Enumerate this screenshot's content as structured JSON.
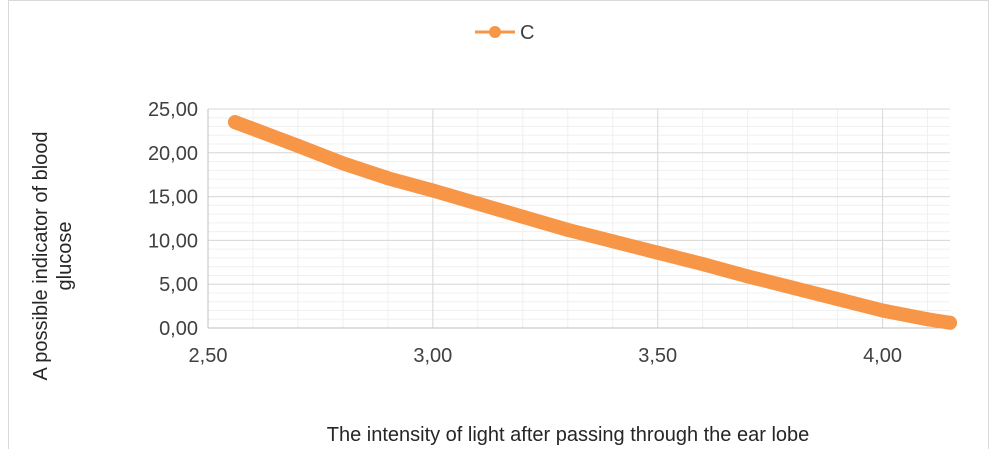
{
  "chart_data": {
    "type": "scatter",
    "title": "",
    "xlabel": "The intensity of light after passing through the ear lobe",
    "ylabel_lines": [
      "A possible indicator of blood",
      "glucose"
    ],
    "xlim": [
      2.5,
      4.15
    ],
    "ylim": [
      0,
      25
    ],
    "x_ticks": [
      2.5,
      3.0,
      3.5,
      4.0
    ],
    "y_ticks": [
      0,
      5,
      10,
      15,
      20,
      25
    ],
    "x_tick_labels": [
      "2,50",
      "3,00",
      "3,50",
      "4,00"
    ],
    "y_tick_labels": [
      "0,00",
      "5,00",
      "10,00",
      "15,00",
      "20,00",
      "25,00"
    ],
    "grid": true,
    "legend_position": "top",
    "series": [
      {
        "name": "C",
        "color": "#f79646",
        "marker": "circle",
        "x": [
          2.56,
          2.7,
          2.8,
          2.9,
          3.0,
          3.1,
          3.2,
          3.3,
          3.4,
          3.5,
          3.6,
          3.7,
          3.8,
          3.9,
          4.0,
          4.1,
          4.15
        ],
        "y": [
          23.5,
          20.8,
          18.8,
          17.1,
          15.7,
          14.2,
          12.7,
          11.2,
          9.9,
          8.6,
          7.3,
          5.9,
          4.6,
          3.3,
          2.0,
          1.0,
          0.6
        ]
      }
    ]
  }
}
